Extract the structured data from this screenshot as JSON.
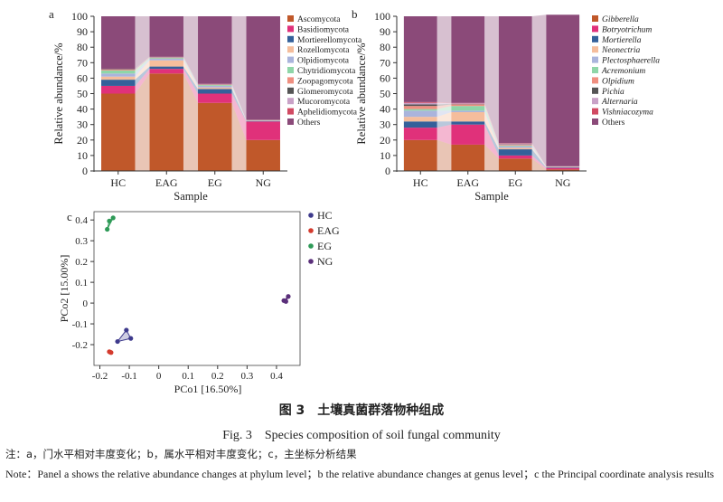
{
  "chart_data": [
    {
      "type": "bar",
      "panel_label": "a",
      "stacked": true,
      "xlabel": "Sample",
      "ylabel": "Relative abundance/%",
      "ylim": [
        0,
        100
      ],
      "yticks": [
        0,
        10,
        20,
        30,
        40,
        50,
        60,
        70,
        80,
        90,
        100
      ],
      "categories": [
        "HC",
        "EAG",
        "EG",
        "NG"
      ],
      "series": [
        {
          "name": "Ascomycota",
          "color": "#c0582a",
          "values": [
            50,
            63,
            44,
            20
          ]
        },
        {
          "name": "Basidiomycota",
          "color": "#e0317a",
          "values": [
            5,
            3,
            6,
            12
          ]
        },
        {
          "name": "Mortierellomycota",
          "color": "#34609a",
          "values": [
            4,
            1.5,
            3,
            0.3
          ]
        },
        {
          "name": "Rozellomycota",
          "color": "#f5bd9c",
          "values": [
            2,
            4,
            1,
            0.2
          ]
        },
        {
          "name": "Olpidiomycota",
          "color": "#aab4dc",
          "values": [
            2,
            1,
            1,
            0.2
          ]
        },
        {
          "name": "Chytridiomycota",
          "color": "#8fd6a8",
          "values": [
            2,
            0.5,
            0.5,
            0.1
          ]
        },
        {
          "name": "Zoopagomycota",
          "color": "#ef8f80",
          "values": [
            0.5,
            0.3,
            0.3,
            0.1
          ]
        },
        {
          "name": "Glomeromycota",
          "color": "#555555",
          "values": [
            0.3,
            0.2,
            0.2,
            0.05
          ]
        },
        {
          "name": "Mucoromycota",
          "color": "#c9a2c7",
          "values": [
            0.2,
            0.2,
            0.2,
            0.05
          ]
        },
        {
          "name": "Aphelidiomycota",
          "color": "#d14a63",
          "values": [
            0.1,
            0.1,
            0.1,
            0.05
          ]
        },
        {
          "name": "Others",
          "color": "#8b4a79",
          "values": [
            33.9,
            26.2,
            43.7,
            66.95
          ]
        }
      ]
    },
    {
      "type": "bar",
      "panel_label": "b",
      "stacked": true,
      "xlabel": "Sample",
      "ylabel": "Relative abundance/%",
      "ylim": [
        0,
        100
      ],
      "yticks": [
        0,
        10,
        20,
        30,
        40,
        50,
        60,
        70,
        80,
        90,
        100
      ],
      "categories": [
        "HC",
        "EAG",
        "EG",
        "NG"
      ],
      "series": [
        {
          "name": "Gibberella",
          "color": "#c0582a",
          "values": [
            20,
            17,
            8,
            1
          ]
        },
        {
          "name": "Botryotrichum",
          "color": "#e0317a",
          "values": [
            8,
            13,
            2,
            1
          ]
        },
        {
          "name": "Mortierella",
          "color": "#34609a",
          "values": [
            4,
            2,
            4,
            0.3
          ]
        },
        {
          "name": "Neonectria",
          "color": "#f5bd9c",
          "values": [
            3,
            6,
            1,
            0.2
          ]
        },
        {
          "name": "Plectosphaerella",
          "color": "#aab4dc",
          "values": [
            4,
            1,
            1,
            0.2
          ]
        },
        {
          "name": "Acremonium",
          "color": "#8fd6a8",
          "values": [
            1,
            3,
            0.5,
            0.1
          ]
        },
        {
          "name": "Olpidium",
          "color": "#ef8f80",
          "values": [
            2,
            1,
            0.5,
            0.1
          ]
        },
        {
          "name": "Pichia",
          "color": "#555555",
          "values": [
            1,
            0.2,
            0.2,
            0.05
          ]
        },
        {
          "name": "Alternaria",
          "color": "#c9a2c7",
          "values": [
            1,
            0.5,
            0.5,
            0.05
          ]
        },
        {
          "name": "Vishniacozyma",
          "color": "#d14a63",
          "values": [
            0.5,
            0.3,
            0.3,
            0.05
          ]
        },
        {
          "name": "Others",
          "color": "#8b4a79",
          "values": [
            55.5,
            56,
            82,
            97.95
          ]
        }
      ]
    },
    {
      "type": "scatter",
      "panel_label": "c",
      "xlabel": "PCo1 [16.50%]",
      "ylabel": "PCo2 [15.00%]",
      "xlim": [
        -0.22,
        0.48
      ],
      "ylim": [
        -0.3,
        0.44
      ],
      "xticks": [
        -0.2,
        -0.1,
        0,
        0.1,
        0.2,
        0.3,
        0.4
      ],
      "yticks": [
        -0.2,
        -0.1,
        0,
        0.1,
        0.2,
        0.3,
        0.4
      ],
      "series": [
        {
          "name": "HC",
          "color": "#3e3a8c",
          "points": [
            [
              -0.14,
              -0.185
            ],
            [
              -0.11,
              -0.13
            ],
            [
              -0.095,
              -0.17
            ]
          ]
        },
        {
          "name": "EAG",
          "color": "#d43b2e",
          "points": [
            [
              -0.168,
              -0.234
            ],
            [
              -0.162,
              -0.238
            ],
            [
              -0.165,
              -0.236
            ]
          ]
        },
        {
          "name": "EG",
          "color": "#2e9a57",
          "points": [
            [
              -0.175,
              0.355
            ],
            [
              -0.168,
              0.395
            ],
            [
              -0.155,
              0.41
            ]
          ]
        },
        {
          "name": "NG",
          "color": "#5a2f7a",
          "points": [
            [
              0.425,
              0.012
            ],
            [
              0.432,
              0.008
            ],
            [
              0.44,
              0.032
            ]
          ]
        }
      ]
    }
  ],
  "caption": {
    "cn_title": "图 3　土壤真菌群落物种组成",
    "en_title": "Fig. 3　Species composition of soil fungal community",
    "note_cn": "注：a，门水平相对丰度变化；b，属水平相对丰度变化；c，主坐标分析结果",
    "note_en": "Note：Panel a shows the relative abundance changes at phylum level；b the relative abundance changes at genus level；c the Principal coordinate analysis results"
  }
}
